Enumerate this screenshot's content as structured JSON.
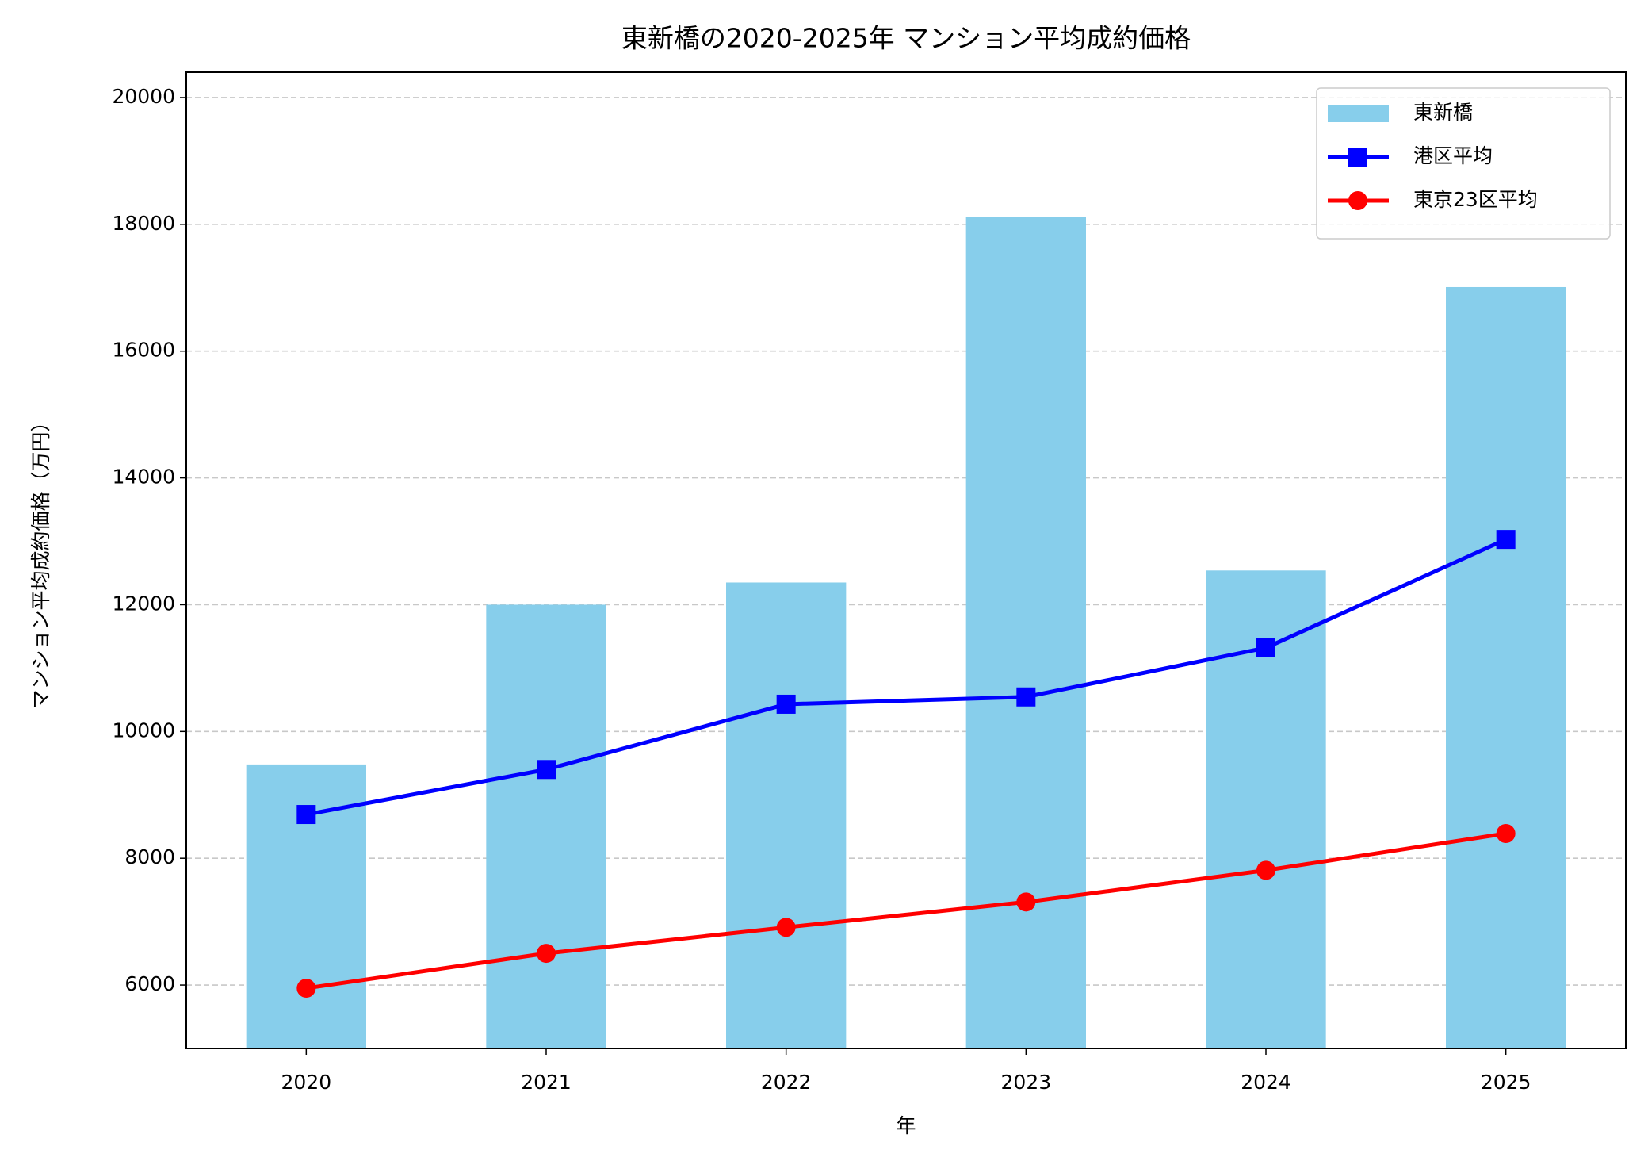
{
  "chart_data": {
    "type": "bar",
    "title": "東新橋の2020-2025年 マンション平均成約価格",
    "x_label": "年",
    "y_label": "マンション平均成約価格（万円）",
    "categories": [
      "2020",
      "2021",
      "2022",
      "2023",
      "2024",
      "2025"
    ],
    "series": [
      {
        "name": "東新橋",
        "type": "bar",
        "color": "#87ceeb",
        "values": [
          9480,
          12000,
          12350,
          18120,
          12540,
          17010
        ]
      },
      {
        "name": "港区平均",
        "type": "line",
        "marker": "square",
        "color": "#0000ff",
        "values": [
          8690,
          9400,
          10430,
          10545,
          11320,
          13030
        ]
      },
      {
        "name": "東京23区平均",
        "type": "line",
        "marker": "circle",
        "color": "#ff0000",
        "values": [
          5950,
          6500,
          6910,
          7310,
          7810,
          8390
        ]
      }
    ],
    "ylim": [
      5000,
      20400
    ],
    "yticks": [
      6000,
      8000,
      10000,
      12000,
      14000,
      16000,
      18000,
      20000
    ],
    "grid": true,
    "legend": "upper right"
  }
}
